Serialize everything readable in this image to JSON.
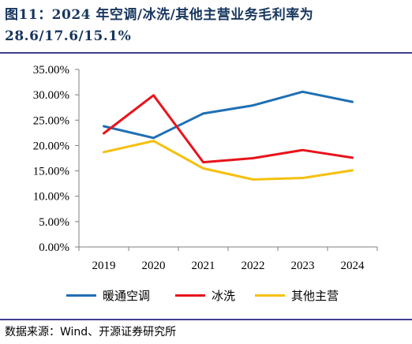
{
  "header": {
    "title": "图11：2024 年空调/冰洗/其他主营业务毛利率为28.6/17.6/15.1%"
  },
  "chart_data": {
    "type": "line",
    "title": "",
    "xlabel": "",
    "ylabel": "",
    "categories": [
      "2019",
      "2020",
      "2021",
      "2022",
      "2023",
      "2024"
    ],
    "y_ticks": [
      "0.00%",
      "5.00%",
      "10.00%",
      "15.00%",
      "20.00%",
      "25.00%",
      "30.00%",
      "35.00%"
    ],
    "ylim": [
      0,
      35
    ],
    "grid": false,
    "legend_position": "bottom",
    "series": [
      {
        "name": "暖通空调",
        "color": "#1f6fb4",
        "values": [
          23.8,
          21.5,
          26.3,
          27.9,
          30.6,
          28.6
        ]
      },
      {
        "name": "冰洗",
        "color": "#e8141b",
        "values": [
          22.4,
          29.9,
          16.7,
          17.5,
          19.1,
          17.6
        ]
      },
      {
        "name": "其他主营",
        "color": "#f5c00f",
        "values": [
          18.7,
          20.9,
          15.5,
          13.3,
          13.6,
          15.1
        ]
      }
    ]
  },
  "footer": {
    "source": "数据来源：Wind、开源证券研究所"
  }
}
